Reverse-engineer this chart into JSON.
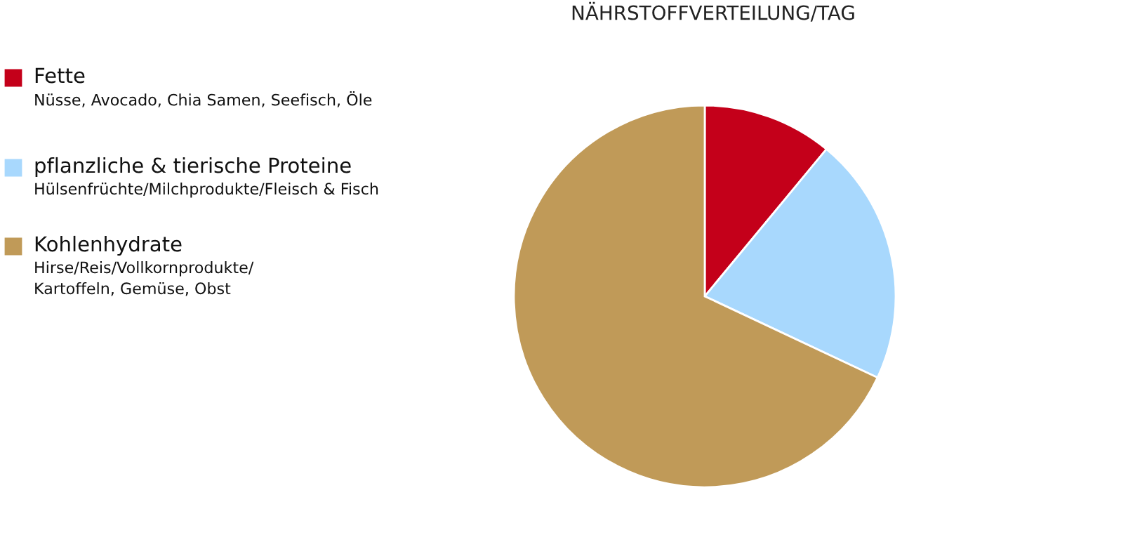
{
  "chart_data": {
    "type": "pie",
    "title": "NÄHRSTOFFVERTEILUNG/TAG",
    "categories": [
      "Fette",
      "pflanzliche & tierische Proteine",
      "Kohlenhydrate"
    ],
    "values": [
      11,
      21,
      68
    ],
    "colors": [
      "#c4001a",
      "#a8d8fd",
      "#c09a58"
    ],
    "annotations": [
      "Nüsse, Avocado, Chia Samen, Seefisch, Öle",
      "Hülsenfrüchte/Milchprodukte/Fleisch & Fisch",
      "Hirse/Reis/Vollkornprodukte/\nKartoffeln, Gemüse, Obst"
    ],
    "legend": "left"
  }
}
